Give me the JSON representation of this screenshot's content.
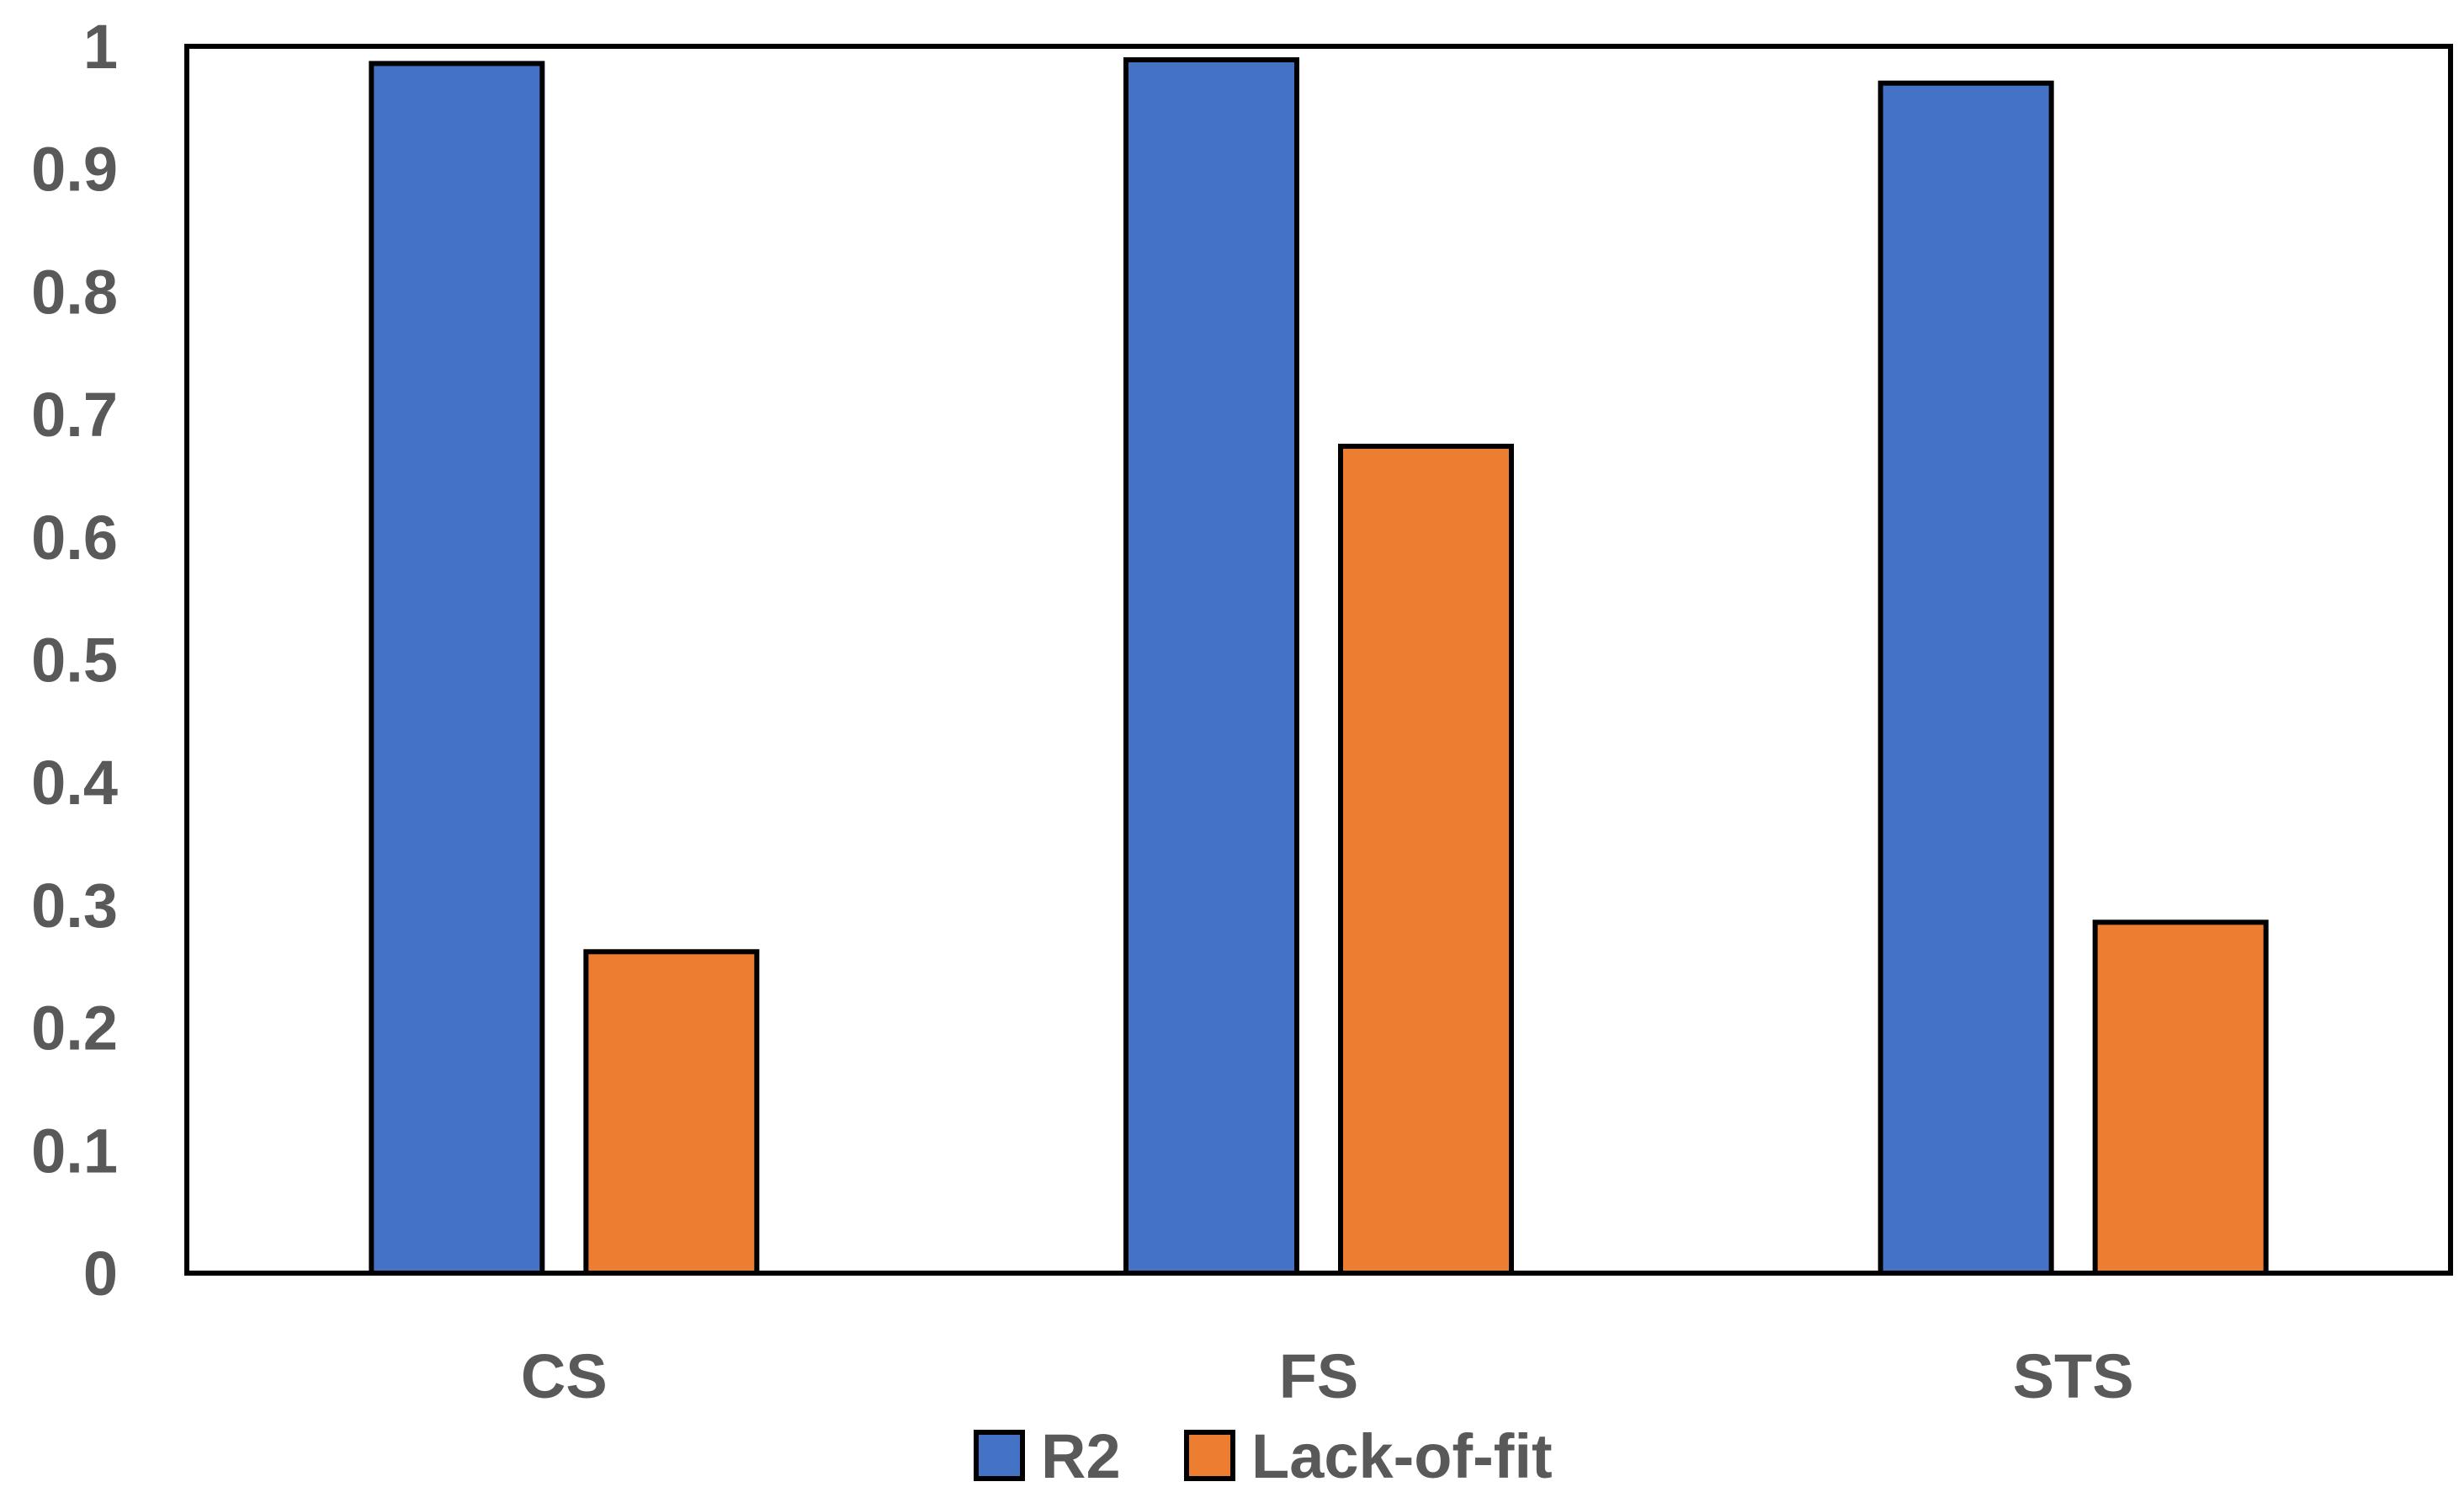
{
  "chart_data": {
    "type": "bar",
    "title": "",
    "xlabel": "",
    "ylabel": "",
    "categories": [
      "CS",
      "FS",
      "STS"
    ],
    "series": [
      {
        "name": "R2",
        "values": [
          0.986,
          0.989,
          0.97
        ],
        "color": "#4472C4"
      },
      {
        "name": "Lack-of-fit",
        "values": [
          0.262,
          0.674,
          0.286
        ],
        "color": "#ED7D31"
      }
    ],
    "ylim": [
      0,
      1
    ],
    "yticks": [
      0,
      0.1,
      0.2,
      0.3,
      0.4,
      0.5,
      0.6,
      0.7,
      0.8,
      0.9,
      1
    ],
    "ytick_labels": [
      "0",
      "0.1",
      "0.2",
      "0.3",
      "0.4",
      "0.5",
      "0.6",
      "0.7",
      "0.8",
      "0.9",
      "1"
    ],
    "grid": false,
    "legend_position": "bottom"
  }
}
